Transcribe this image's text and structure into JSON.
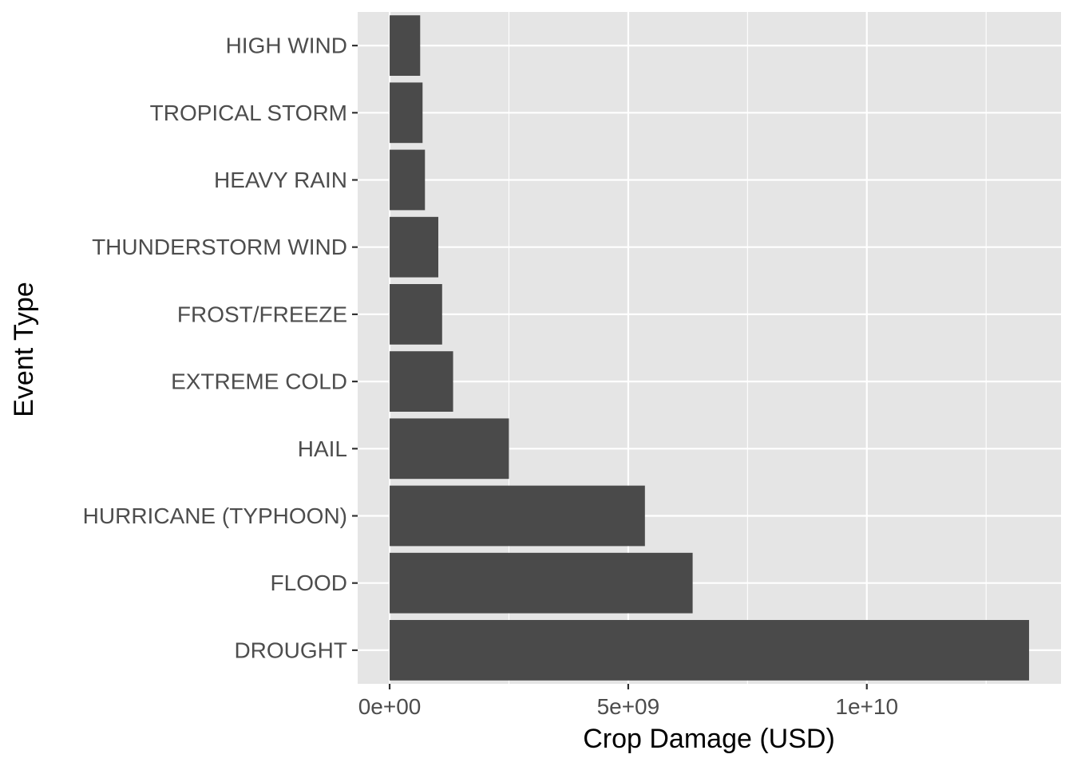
{
  "chart_data": {
    "type": "bar",
    "orientation": "horizontal",
    "categories": [
      "DROUGHT",
      "FLOOD",
      "HURRICANE (TYPHOON)",
      "HAIL",
      "EXTREME COLD",
      "FROST/FREEZE",
      "THUNDERSTORM WIND",
      "HEAVY RAIN",
      "TROPICAL STORM",
      "HIGH WIND"
    ],
    "values": [
      13400000000,
      6350000000,
      5350000000,
      2500000000,
      1330000000,
      1100000000,
      1020000000,
      740000000,
      690000000,
      640000000
    ],
    "xlabel": "Crop Damage (USD)",
    "ylabel": "Event Type",
    "xlim": [
      -670000000,
      14070000000
    ],
    "x_ticks": [
      {
        "value": 0,
        "label": "0e+00"
      },
      {
        "value": 5000000000,
        "label": "5e+09"
      },
      {
        "value": 10000000000,
        "label": "1e+10"
      }
    ],
    "x_minor_gridlines": [
      2500000000,
      7500000000,
      12500000000
    ],
    "grid": true,
    "legend": "none",
    "colors": {
      "bar": "#4a4a4a",
      "panel": "#e5e5e5",
      "grid": "#ffffff",
      "tick_text": "#4d4d4d",
      "tick_mark": "#333333",
      "title_text": "#000000"
    }
  }
}
